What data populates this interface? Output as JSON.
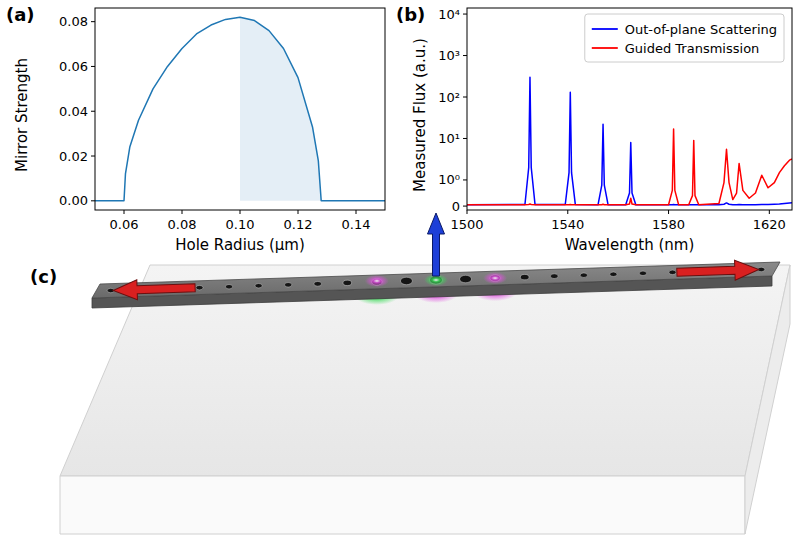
{
  "chart_data": [
    {
      "type": "line",
      "panel": "(a)",
      "x_label": "Hole Radius (μm)",
      "y_label": "Mirror Strength",
      "x": [
        0.05,
        0.06,
        0.0605,
        0.062,
        0.065,
        0.07,
        0.075,
        0.08,
        0.085,
        0.09,
        0.095,
        0.1,
        0.105,
        0.11,
        0.115,
        0.12,
        0.125,
        0.127,
        0.128,
        0.13,
        0.14,
        0.15
      ],
      "values": [
        0,
        0,
        0.012,
        0.024,
        0.036,
        0.05,
        0.06,
        0.068,
        0.0745,
        0.0785,
        0.081,
        0.082,
        0.0805,
        0.076,
        0.068,
        0.055,
        0.033,
        0.018,
        0,
        0,
        0,
        0
      ],
      "color": "#1f77b4",
      "highlight_x": [
        0.1,
        0.128
      ],
      "xlim": [
        0.05,
        0.15
      ],
      "ylim": [
        -0.0041,
        0.0861
      ],
      "xticks": [
        0.06,
        0.08,
        {
          "value": 0.1,
          "label": "0.10"
        },
        0.12,
        0.14
      ],
      "yticks": [
        {
          "value": 0,
          "label": "0.00"
        },
        0.02,
        0.04,
        0.06,
        0.08
      ],
      "grid": false
    },
    {
      "type": "line",
      "panel": "(b)",
      "x_label": "Wavelength (nm)",
      "y_label": "Measured Flux (a.u.)",
      "log": "y",
      "legend": "upper right",
      "grid": false,
      "x": [
        1500,
        1523,
        1524.5,
        1525,
        1525.5,
        1527,
        1539,
        1540.5,
        1541,
        1541.5,
        1543,
        1552,
        1553.5,
        1554,
        1554.5,
        1556,
        1563,
        1564.5,
        1565,
        1565.5,
        1567,
        1580,
        1581.5,
        1582,
        1582.5,
        1584,
        1588,
        1589.5,
        1590,
        1590.5,
        1592,
        1600,
        1602,
        1603,
        1604,
        1605.5,
        1607,
        1608,
        1609.5,
        1612,
        1614.5,
        1617,
        1619.5,
        1622,
        1624,
        1626,
        1628,
        1629
      ],
      "series": [
        {
          "name": "Out-of-plane Scattering",
          "color": "#0000ff",
          "values": [
            0.05,
            0.06,
            2,
            300,
            2,
            0.06,
            0.06,
            1.5,
            130,
            1.5,
            0.06,
            0.05,
            0.8,
            22,
            0.8,
            0.05,
            0.05,
            0.5,
            8,
            0.5,
            0.05,
            0.05,
            0.05,
            0.06,
            0.05,
            0.05,
            0.05,
            0.05,
            0.05,
            0.05,
            0.05,
            0.05,
            0.07,
            0.12,
            0.07,
            0.05,
            0.05,
            0.06,
            0.05,
            0.05,
            0.05,
            0.06,
            0.06,
            0.07,
            0.08,
            0.1,
            0.12,
            0.13
          ]
        },
        {
          "name": "Guided Transmission",
          "color": "#ff0000",
          "values": [
            0.05,
            0.05,
            0.06,
            0.08,
            0.06,
            0.05,
            0.05,
            0.05,
            0.06,
            0.05,
            0.05,
            0.05,
            0.05,
            0.07,
            0.05,
            0.05,
            0.05,
            0.08,
            0.3,
            0.08,
            0.05,
            0.05,
            0.6,
            17,
            0.6,
            0.05,
            0.05,
            0.4,
            9,
            0.4,
            0.05,
            0.1,
            0.9,
            5.5,
            0.9,
            0.25,
            0.5,
            2.5,
            0.6,
            0.3,
            0.5,
            1.3,
            0.7,
            0.9,
            1.5,
            2.2,
            3,
            3.2
          ]
        }
      ],
      "xlim": [
        1500,
        1629
      ],
      "ylim": [
        -0.15,
        14000
      ],
      "xticks": [
        1500,
        1540,
        1580,
        1620
      ],
      "yticks": [
        0,
        {
          "value": 1,
          "label": "10⁰"
        },
        {
          "value": 10,
          "label": "10¹"
        },
        {
          "value": 100,
          "label": "10²"
        },
        {
          "value": 1000,
          "label": "10³"
        },
        {
          "value": 10000,
          "label": "10⁴"
        }
      ]
    }
  ],
  "diagram": {
    "panel": "(c)"
  }
}
